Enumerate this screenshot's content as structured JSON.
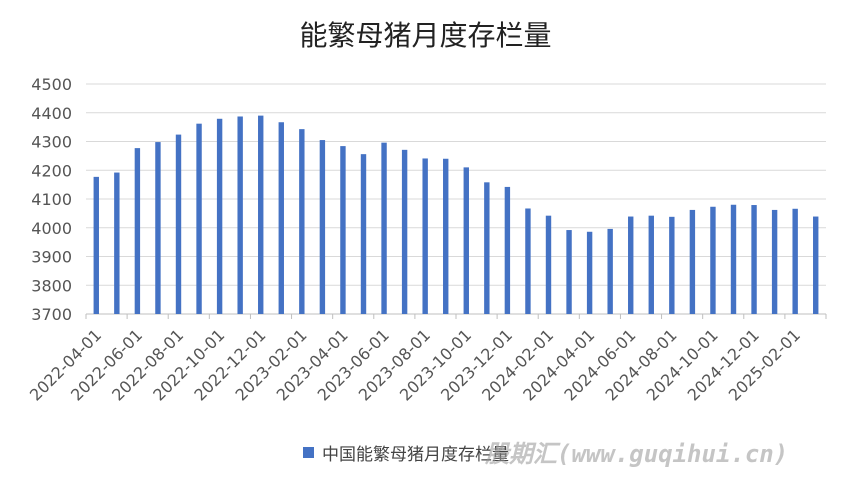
{
  "chart_data": {
    "type": "bar",
    "title": "能繁母猪月度存栏量",
    "xlabel": "",
    "ylabel": "",
    "ylim": [
      3700,
      4500
    ],
    "yticks": [
      3700,
      3800,
      3900,
      4000,
      4100,
      4200,
      4300,
      4400,
      4500
    ],
    "grid": true,
    "legend_position": "bottom",
    "categories": [
      "2022-04-01",
      "2022-05-01",
      "2022-06-01",
      "2022-07-01",
      "2022-08-01",
      "2022-09-01",
      "2022-10-01",
      "2022-11-01",
      "2022-12-01",
      "2023-01-01",
      "2023-02-01",
      "2023-03-01",
      "2023-04-01",
      "2023-05-01",
      "2023-06-01",
      "2023-07-01",
      "2023-08-01",
      "2023-09-01",
      "2023-10-01",
      "2023-11-01",
      "2023-12-01",
      "2024-01-01",
      "2024-02-01",
      "2024-03-01",
      "2024-04-01",
      "2024-05-01",
      "2024-06-01",
      "2024-07-01",
      "2024-08-01",
      "2024-09-01",
      "2024-10-01",
      "2024-11-01",
      "2024-12-01",
      "2025-01-01",
      "2025-02-01",
      "2025-03-01"
    ],
    "xtick_labels": [
      "2022-04-01",
      "2022-06-01",
      "2022-08-01",
      "2022-10-01",
      "2022-12-01",
      "2023-02-01",
      "2023-04-01",
      "2023-06-01",
      "2023-08-01",
      "2023-10-01",
      "2023-12-01",
      "2024-02-01",
      "2024-04-01",
      "2024-06-01",
      "2024-08-01",
      "2024-10-01",
      "2024-12-01",
      "2025-02-01"
    ],
    "series": [
      {
        "name": "中国能繁母猪月度存栏量",
        "color": "#4472c4",
        "values": [
          4177,
          4192,
          4277,
          4298,
          4324,
          4362,
          4379,
          4387,
          4390,
          4367,
          4343,
          4305,
          4284,
          4256,
          4296,
          4271,
          4241,
          4240,
          4210,
          4158,
          4142,
          4067,
          4042,
          3992,
          3986,
          3996,
          4039,
          4042,
          4038,
          4062,
          4073,
          4080,
          4079,
          4062,
          4066,
          4039
        ]
      }
    ]
  },
  "watermark": "股期汇(www.guqihui.cn)"
}
